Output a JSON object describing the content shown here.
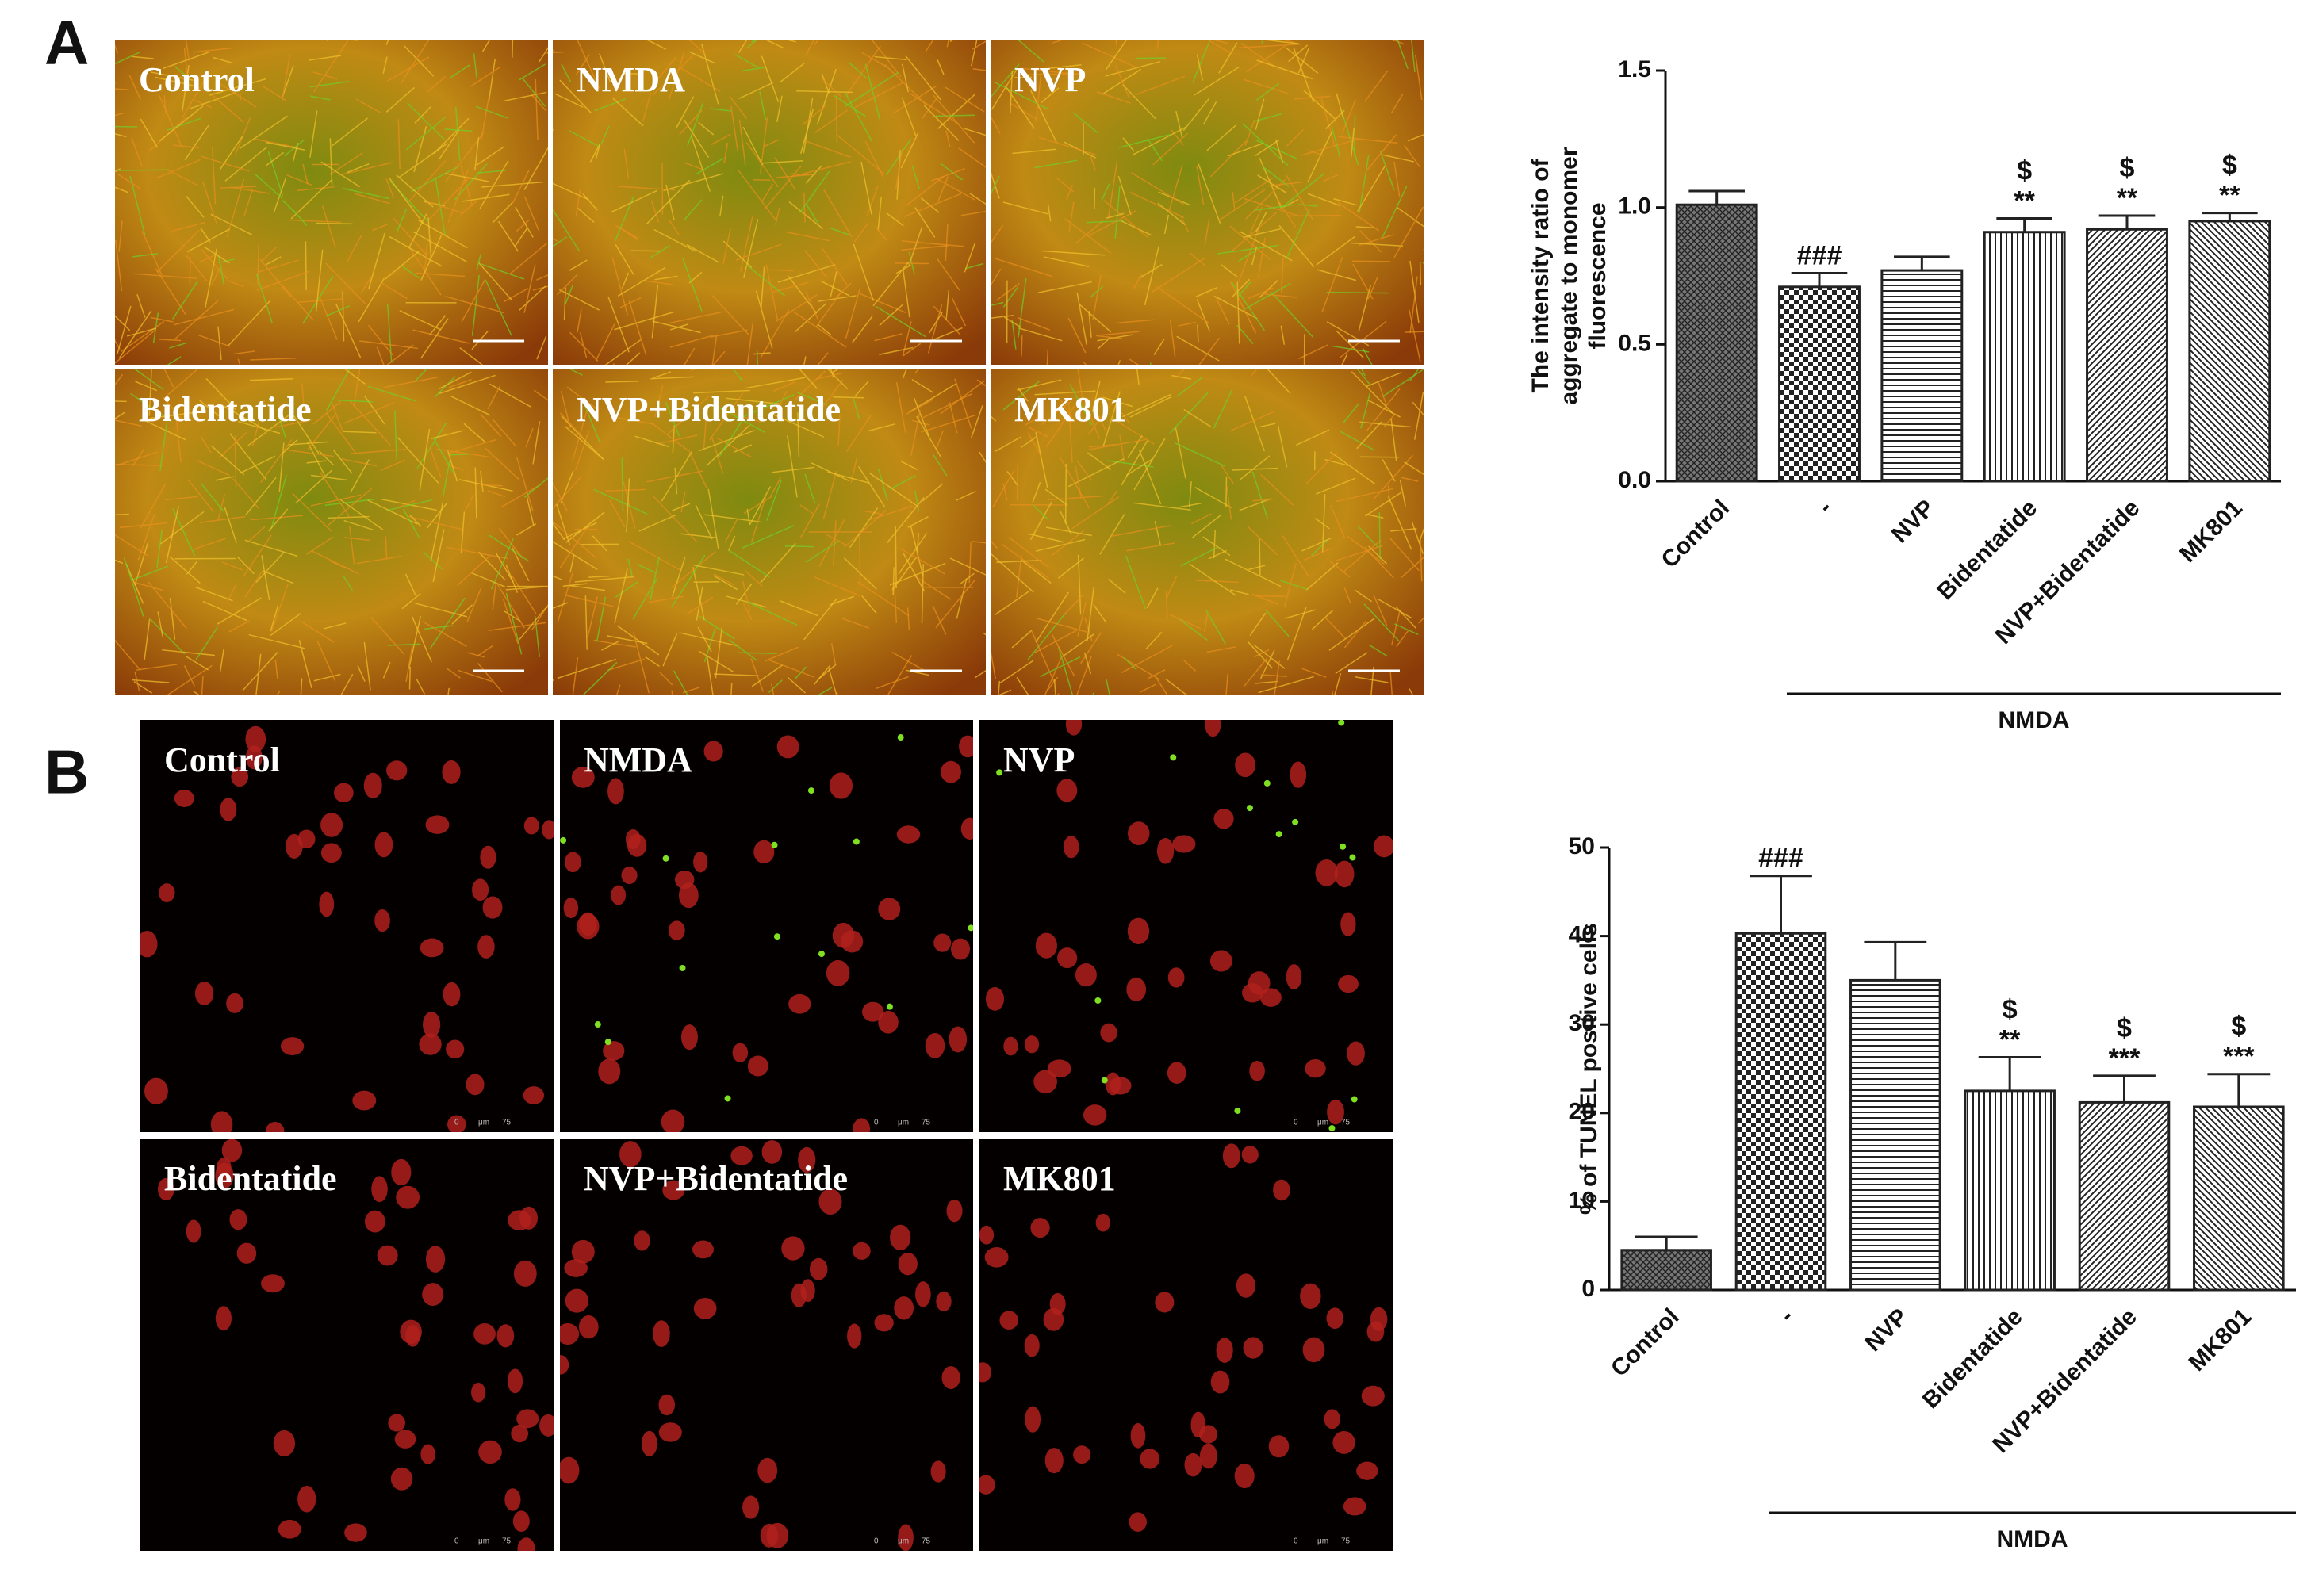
{
  "figure": {
    "panels": [
      {
        "label": "A",
        "images": [
          "Control",
          "NMDA",
          "NVP",
          "Bidentatide",
          "NVP+Bidentatide",
          "MK801"
        ]
      },
      {
        "label": "B",
        "images": [
          "Control",
          "NMDA",
          "NVP",
          "Bidentatide",
          "NVP+Bidentatide",
          "MK801"
        ],
        "scale_label": [
          "0",
          "μm",
          "75"
        ]
      }
    ]
  },
  "chart_data": [
    {
      "type": "bar",
      "ylabel": [
        "The intensity ratio of",
        "aggregate to monomer",
        "fluorescence"
      ],
      "categories": [
        "Control",
        "-",
        "NVP",
        "Bidentatide",
        "NVP+Bidentatide",
        "MK801"
      ],
      "values": [
        1.01,
        0.71,
        0.77,
        0.91,
        0.92,
        0.95
      ],
      "errors": [
        0.05,
        0.05,
        0.05,
        0.05,
        0.05,
        0.03
      ],
      "annotations": [
        null,
        [
          "###"
        ],
        null,
        [
          "$",
          "**"
        ],
        [
          "$",
          "**"
        ],
        [
          "$",
          "**"
        ]
      ],
      "group_label": "NMDA",
      "patterns": [
        "crosshatch",
        "checker",
        "hlines",
        "vlines",
        "diag",
        "diag2"
      ],
      "color": "#222222",
      "ylim": [
        0,
        1.5
      ],
      "yticks": [
        {
          "value": 0,
          "label": "0.0"
        },
        {
          "value": 0.5,
          "label": "0.5"
        },
        {
          "value": 1,
          "label": "1.0"
        },
        {
          "value": 1.5,
          "label": "1.5"
        }
      ],
      "grid": false
    },
    {
      "type": "bar",
      "ylabel": [
        "% of TUNEL positive cells"
      ],
      "categories": [
        "Control",
        "-",
        "NVP",
        "Bidentatide",
        "NVP+Bidentatide",
        "MK801"
      ],
      "values": [
        4.5,
        40.3,
        35,
        22.5,
        21.2,
        20.7
      ],
      "errors": [
        1.5,
        6.5,
        4.3,
        3.8,
        3.0,
        3.7
      ],
      "annotations": [
        null,
        [
          "###"
        ],
        null,
        [
          "$",
          "**"
        ],
        [
          "$",
          "***"
        ],
        [
          "$",
          "***"
        ]
      ],
      "group_label": "NMDA",
      "patterns": [
        "crosshatch",
        "checker",
        "hlines",
        "vlines",
        "diag",
        "diag2"
      ],
      "color": "#222222",
      "ylim": [
        0,
        50
      ],
      "yticks": [
        0,
        10,
        20,
        30,
        40,
        50
      ],
      "grid": false
    }
  ]
}
